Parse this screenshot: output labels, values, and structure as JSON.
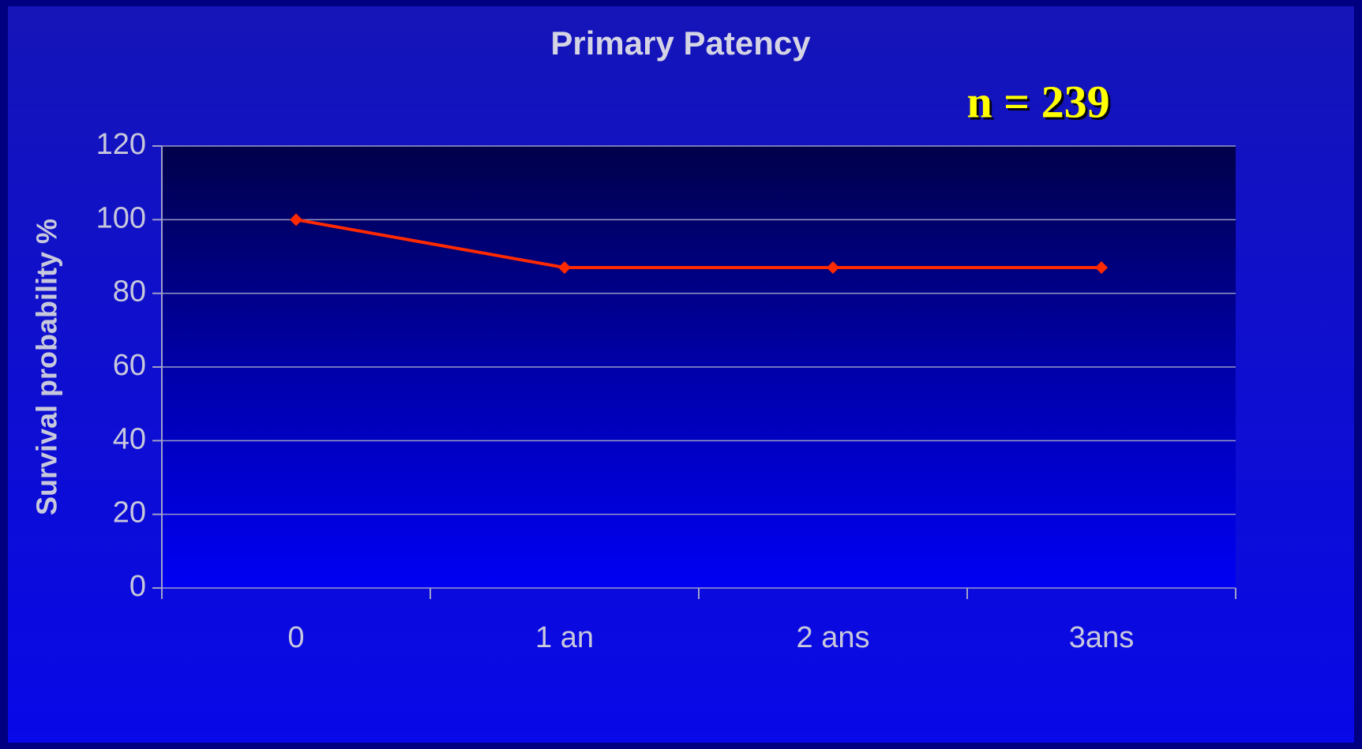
{
  "chart_data": {
    "type": "line",
    "title": "Primary Patency",
    "annotation": "n = 239",
    "y_label": "Survival probability %",
    "categories": [
      "0",
      "1 an",
      "2 ans",
      "3ans"
    ],
    "values": [
      100,
      87,
      87,
      87
    ],
    "color": "#ff2a00",
    "ylim": [
      0,
      120
    ],
    "yticks": [
      0,
      20,
      40,
      60,
      80,
      100,
      120
    ],
    "grid": true
  }
}
